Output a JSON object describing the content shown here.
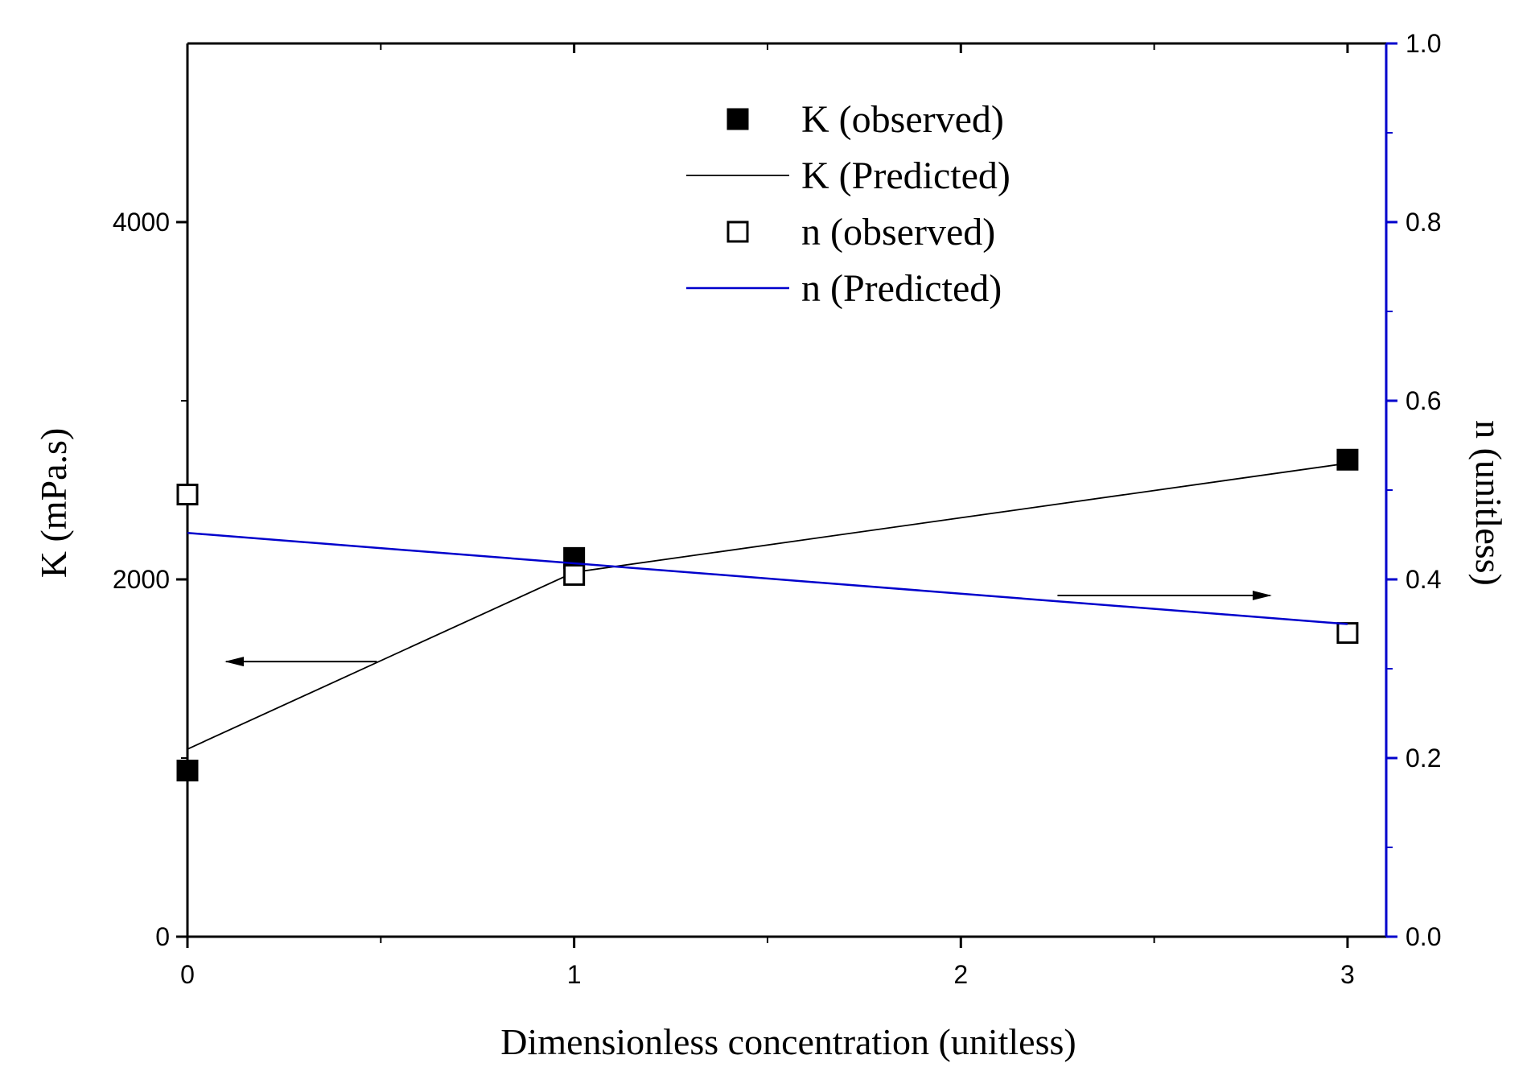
{
  "chart_data": {
    "type": "line",
    "title": "",
    "xlabel": "Dimensionless concentration (unitless)",
    "ylabel_left": "K (mPa.s)",
    "ylabel_right": "n (unitless)",
    "xlim": [
      0,
      3.1
    ],
    "ylim_left": [
      0,
      5000
    ],
    "ylim_right": [
      0,
      1.0
    ],
    "x_ticks": [
      0,
      1,
      2,
      3
    ],
    "x_tick_labels": [
      "0",
      "1",
      "2",
      "3"
    ],
    "y_left_ticks": [
      0,
      2000,
      4000
    ],
    "y_left_tick_labels": [
      "0",
      "2000",
      "4000"
    ],
    "y_right_ticks": [
      0.0,
      0.2,
      0.4,
      0.6,
      0.8,
      1.0
    ],
    "y_right_tick_labels": [
      "0.0",
      "0.2",
      "0.4",
      "0.6",
      "0.8",
      "1.0"
    ],
    "series": [
      {
        "name": "K (observed)",
        "kind": "marker-filled-square",
        "axis": "left",
        "color": "#000000",
        "x": [
          0,
          1,
          3
        ],
        "values": [
          930,
          2120,
          2670
        ]
      },
      {
        "name": "K (Predicted)",
        "kind": "line",
        "axis": "left",
        "color": "#000000",
        "x": [
          0,
          1,
          3
        ],
        "values": [
          1050,
          2040,
          2650
        ]
      },
      {
        "name": "n (observed)",
        "kind": "marker-open-square",
        "axis": "right",
        "color": "#000000",
        "x": [
          0,
          1,
          3
        ],
        "values": [
          0.495,
          0.405,
          0.34
        ]
      },
      {
        "name": "n (Predicted)",
        "kind": "line",
        "axis": "right",
        "color": "#0000cc",
        "x": [
          0,
          3
        ],
        "values": [
          0.452,
          0.35
        ]
      }
    ],
    "arrows": [
      {
        "name": "left-axis-arrow",
        "direction": "left",
        "axis": "left",
        "x_from": 0.49,
        "x_to": 0.1,
        "y": 1540
      },
      {
        "name": "right-axis-arrow",
        "direction": "right",
        "axis": "right",
        "x_from": 2.25,
        "x_to": 2.8,
        "y": 0.382
      }
    ],
    "legend": {
      "position": "top-center",
      "entries": [
        "K (observed)",
        "K (Predicted)",
        "n (observed)",
        "n (Predicted)"
      ]
    },
    "colors": {
      "right_axis": "#0000cc",
      "black": "#000000"
    }
  }
}
